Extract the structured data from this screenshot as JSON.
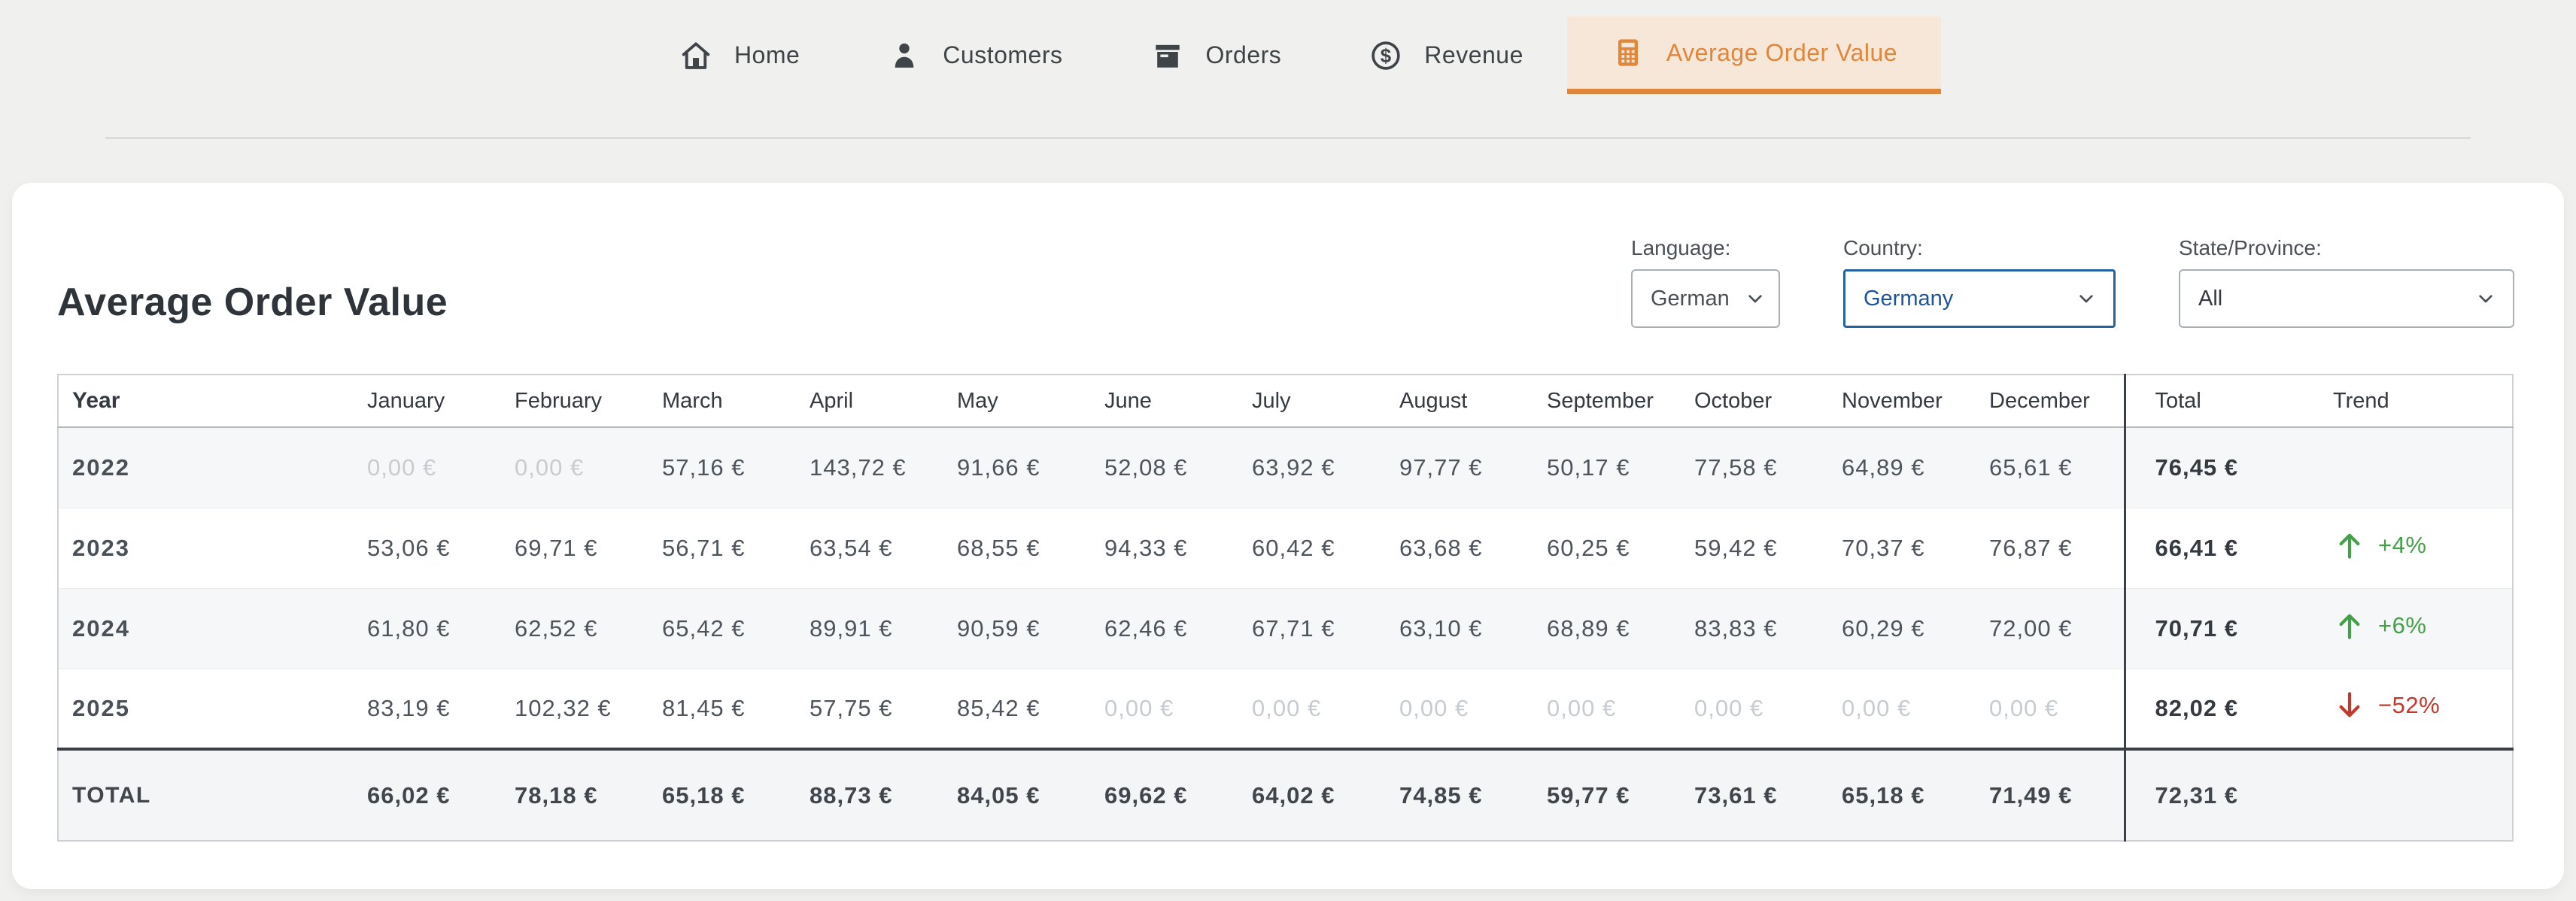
{
  "nav": {
    "items": [
      {
        "label": "Home",
        "icon": "home-icon",
        "active": false
      },
      {
        "label": "Customers",
        "icon": "customers-icon",
        "active": false
      },
      {
        "label": "Orders",
        "icon": "orders-icon",
        "active": false
      },
      {
        "label": "Revenue",
        "icon": "revenue-icon",
        "active": false
      },
      {
        "label": "Average Order Value",
        "icon": "calculator-icon",
        "active": true
      }
    ]
  },
  "page": {
    "title": "Average Order Value"
  },
  "filters": {
    "language": {
      "label": "Language:",
      "value": "German"
    },
    "country": {
      "label": "Country:",
      "value": "Germany"
    },
    "state": {
      "label": "State/Province:",
      "value": "All"
    }
  },
  "table": {
    "headers": [
      "Year",
      "January",
      "February",
      "March",
      "April",
      "May",
      "June",
      "July",
      "August",
      "September",
      "October",
      "November",
      "December",
      "Total",
      "Trend"
    ],
    "rows": [
      {
        "year": "2022",
        "months": [
          "0,00 €",
          "0,00 €",
          "57,16 €",
          "143,72 €",
          "91,66 €",
          "52,08 €",
          "63,92 €",
          "97,77 €",
          "50,17 €",
          "77,58 €",
          "64,89 €",
          "65,61 €"
        ],
        "muted": [
          0,
          1
        ],
        "total": "76,45 €",
        "trend": null
      },
      {
        "year": "2023",
        "months": [
          "53,06 €",
          "69,71 €",
          "56,71 €",
          "63,54 €",
          "68,55 €",
          "94,33 €",
          "60,42 €",
          "63,68 €",
          "60,25 €",
          "59,42 €",
          "70,37 €",
          "76,87 €"
        ],
        "muted": [],
        "total": "66,41 €",
        "trend": {
          "direction": "up",
          "label": "+4%"
        }
      },
      {
        "year": "2024",
        "months": [
          "61,80 €",
          "62,52 €",
          "65,42 €",
          "89,91 €",
          "90,59 €",
          "62,46 €",
          "67,71 €",
          "63,10 €",
          "68,89 €",
          "83,83 €",
          "60,29 €",
          "72,00 €"
        ],
        "muted": [],
        "total": "70,71 €",
        "trend": {
          "direction": "up",
          "label": "+6%"
        }
      },
      {
        "year": "2025",
        "months": [
          "83,19 €",
          "102,32 €",
          "81,45 €",
          "57,75 €",
          "85,42 €",
          "0,00 €",
          "0,00 €",
          "0,00 €",
          "0,00 €",
          "0,00 €",
          "0,00 €",
          "0,00 €"
        ],
        "muted": [
          5,
          6,
          7,
          8,
          9,
          10,
          11
        ],
        "total": "82,02 €",
        "trend": {
          "direction": "down",
          "label": "−52%"
        }
      }
    ],
    "footer": {
      "label": "TOTAL",
      "months": [
        "66,02 €",
        "78,18 €",
        "65,18 €",
        "88,73 €",
        "84,05 €",
        "69,62 €",
        "64,02 €",
        "74,85 €",
        "59,77 €",
        "73,61 €",
        "65,18 €",
        "71,49 €"
      ],
      "total": "72,31 €",
      "trend": null
    }
  },
  "colors": {
    "accent_orange": "#e0873c",
    "active_tab_bg": "#f6e7d9",
    "country_accent": "#2563a0",
    "trend_up": "#43a047",
    "trend_down": "#c0392b",
    "muted_value": "#c7ccd1"
  }
}
